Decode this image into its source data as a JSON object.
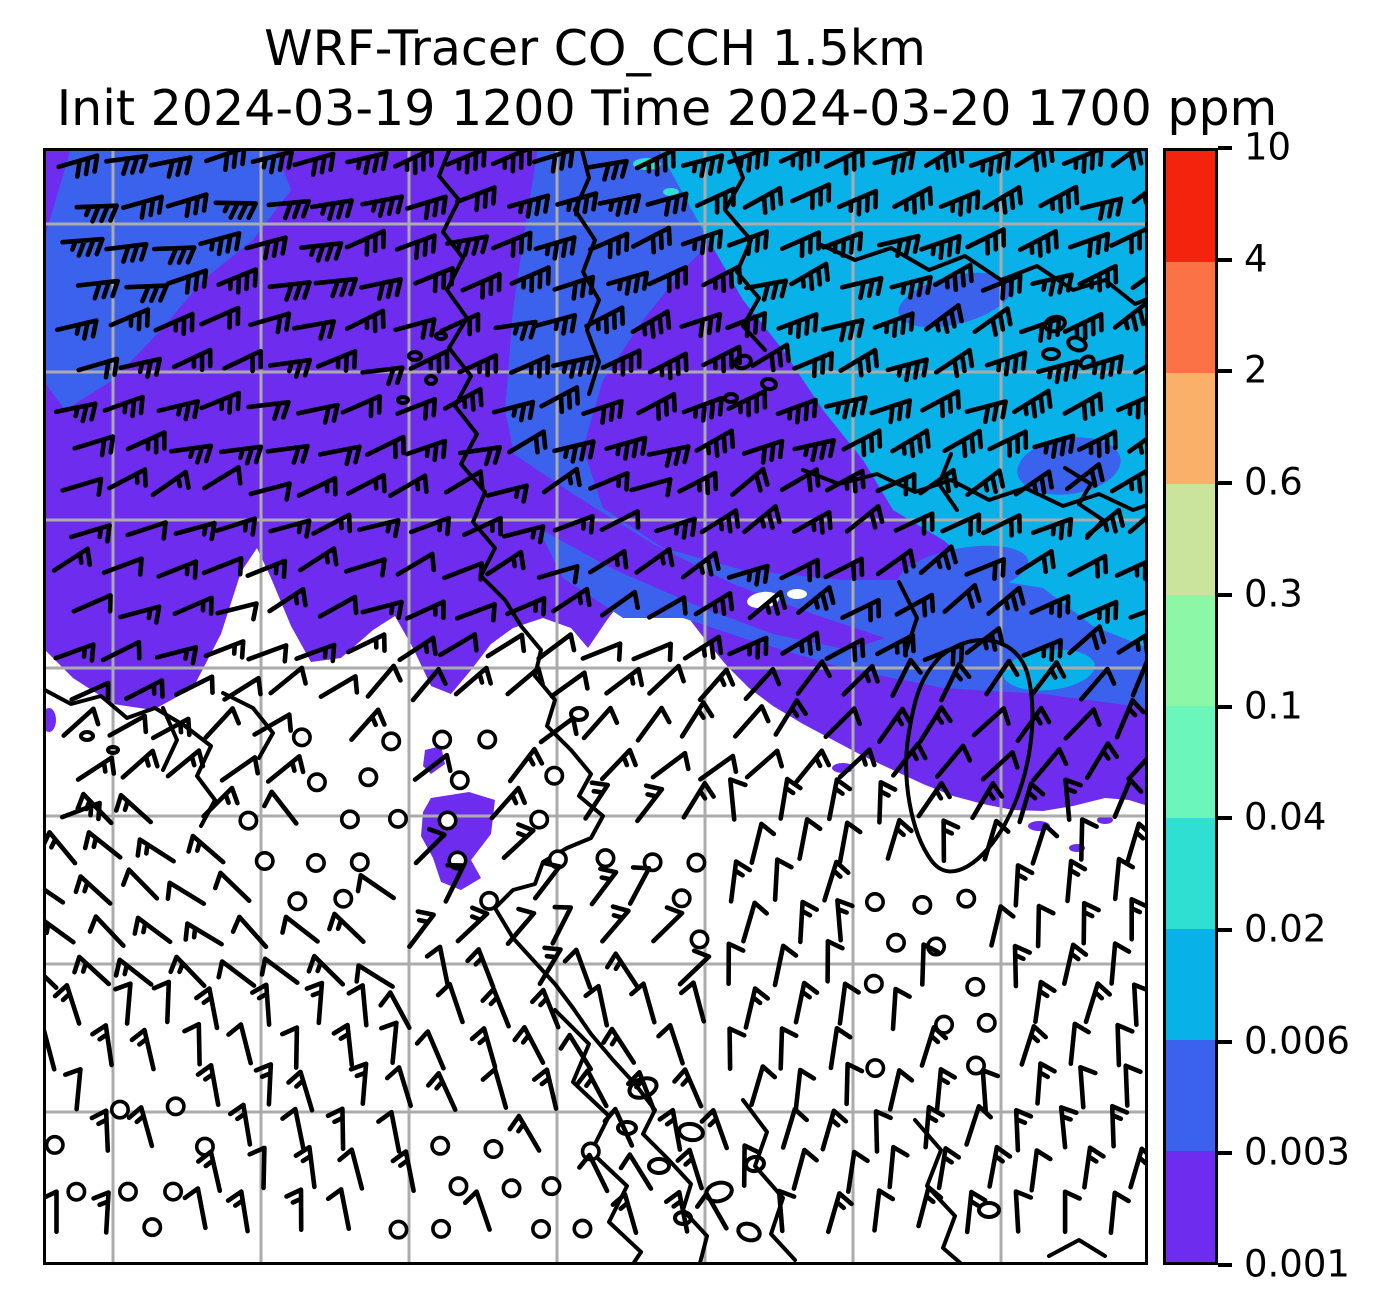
{
  "title": {
    "line1": "WRF-Tracer CO_CCH 1.5km",
    "line2": "Init 2024-03-19 1200 Time 2024-03-20 1700 ppm"
  },
  "colorbar": {
    "unit": "ppm",
    "tick_labels_top_to_bottom": [
      "10",
      "4",
      "2",
      "0.6",
      "0.3",
      "0.1",
      "0.04",
      "0.02",
      "0.006",
      "0.003",
      "0.001"
    ],
    "levels_bottom_to_top": [
      0.001,
      0.003,
      0.006,
      0.02,
      0.04,
      0.1,
      0.3,
      0.6,
      2,
      4,
      10
    ],
    "colors_bottom_to_top": [
      "#6E2CEE",
      "#3B62ED",
      "#09B1E9",
      "#2FDFD1",
      "#6BF6BB",
      "#8CF7A5",
      "#CBE49B",
      "#FBB06A",
      "#FA7246",
      "#F4230E"
    ]
  },
  "map": {
    "background": "#FFFFFF",
    "gridline_color": "#ABABAB",
    "coastline_color": "#000000",
    "barb_color": "#000000",
    "fill_purple": "#6E2CEE",
    "fill_blue": "#3B62ED",
    "fill_cyan": "#09B1E9",
    "fill_turquoise": "#2FDFD1"
  },
  "chart_data": {
    "type": "heatmap",
    "title": "WRF-Tracer CO_CCH 1.5km",
    "init_time": "2024-03-19 1200",
    "valid_time": "2024-03-20 1700",
    "units": "ppm",
    "variable": "CO tracer concentration (CO_CCH) at 1.5 km with wind barbs",
    "levels": [
      0.001,
      0.003,
      0.006,
      0.02,
      0.04,
      0.1,
      0.3,
      0.6,
      2,
      4,
      10
    ],
    "level_colors": [
      "#6E2CEE",
      "#3B62ED",
      "#09B1E9",
      "#2FDFD1",
      "#6BF6BB",
      "#8CF7A5",
      "#CBE49B",
      "#FBB06A",
      "#FA7246",
      "#F4230E"
    ],
    "field_summary": [
      {
        "region": "top-right corner",
        "value_range_ppm": "0.006-0.02",
        "color": "#09B1E9"
      },
      {
        "region": "upper-middle band and top-left patch",
        "value_range_ppm": "0.003-0.006",
        "color": "#3B62ED"
      },
      {
        "region": "broad upper-left and diagonal mid band",
        "value_range_ppm": "0.001-0.003",
        "color": "#6E2CEE"
      },
      {
        "region": "lower half of domain",
        "value_range_ppm": "< 0.001 (below lowest contour, white)",
        "color": "#FFFFFF"
      },
      {
        "region": "isolated patches in white area",
        "value_range_ppm": "0.001-0.003",
        "color": "#6E2CEE"
      }
    ],
    "wind": {
      "symbol": "station wind barbs, black",
      "upper_domain": "moderate-to-strong flow, staffs pointing east-northeast with 2-3 full barbs",
      "lower_left": "weak southerly/variable flow, 1 barb or calm circles",
      "lower_right": "northerly flow, near-vertical staffs with single barbs",
      "calm_symbol": "open circles in clusters of light wind"
    },
    "grid": "light gray lat/lon graticule, 7 vertical and 7 horizontal lines"
  }
}
